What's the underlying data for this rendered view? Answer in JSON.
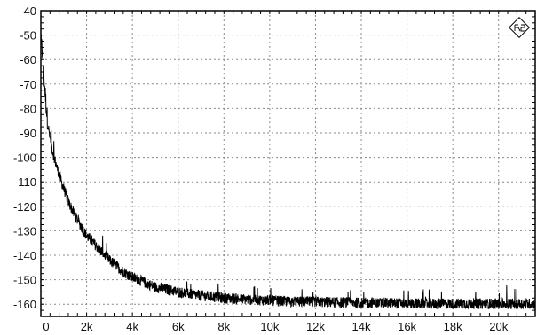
{
  "chart_data": {
    "type": "line",
    "title": "",
    "xlabel": "",
    "ylabel": "",
    "xlim": [
      0,
      21600
    ],
    "ylim": [
      -165,
      -40
    ],
    "grid": true,
    "x_ticks": [
      0,
      2000,
      4000,
      6000,
      8000,
      10000,
      12000,
      14000,
      16000,
      18000,
      20000
    ],
    "x_tick_labels": [
      "0",
      "2k",
      "4k",
      "6k",
      "8k",
      "10k",
      "12k",
      "14k",
      "16k",
      "18k",
      "20k"
    ],
    "y_ticks": [
      -40,
      -50,
      -60,
      -70,
      -80,
      -90,
      -100,
      -110,
      -120,
      -130,
      -140,
      -150,
      -160
    ],
    "y_tick_labels": [
      "-40",
      "-50",
      "-60",
      "-70",
      "-80",
      "-90",
      "-100",
      "-110",
      "-120",
      "-130",
      "-140",
      "-150",
      "-160"
    ],
    "series": [
      {
        "color": "#000000",
        "x": [
          0,
          50,
          100,
          200,
          300,
          400,
          500,
          700,
          900,
          1200,
          1500,
          2000,
          2500,
          3000,
          3500,
          4000,
          4500,
          5000,
          6000,
          7000,
          8000,
          9000,
          10000,
          11000,
          12000,
          13000,
          14000,
          15000,
          16000,
          17000,
          18000,
          19000,
          20000,
          21000,
          21600
        ],
        "y": [
          -56,
          -54,
          -62,
          -75,
          -86,
          -92,
          -97,
          -104,
          -110,
          -118,
          -124,
          -132,
          -137,
          -142,
          -146,
          -149,
          -151,
          -153,
          -155,
          -156.5,
          -157.5,
          -158,
          -158.5,
          -159,
          -159,
          -159.3,
          -159.5,
          -159.5,
          -159.7,
          -159.8,
          -159.8,
          -159.8,
          -159.8,
          -159.8,
          -159.8
        ]
      }
    ]
  }
}
